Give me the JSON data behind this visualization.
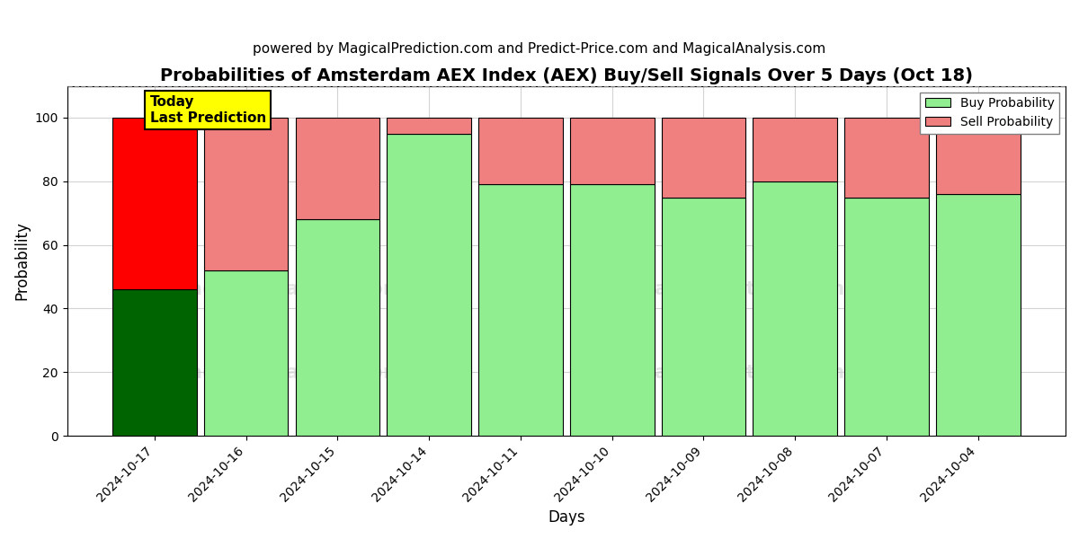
{
  "title": "Probabilities of Amsterdam AEX Index (AEX) Buy/Sell Signals Over 5 Days (Oct 18)",
  "subtitle": "powered by MagicalPrediction.com and Predict-Price.com and MagicalAnalysis.com",
  "xlabel": "Days",
  "ylabel": "Probability",
  "categories": [
    "2024-10-17",
    "2024-10-16",
    "2024-10-15",
    "2024-10-14",
    "2024-10-11",
    "2024-10-10",
    "2024-10-09",
    "2024-10-08",
    "2024-10-07",
    "2024-10-04"
  ],
  "buy_values": [
    46,
    52,
    68,
    95,
    79,
    79,
    75,
    80,
    75,
    76
  ],
  "sell_values": [
    54,
    48,
    32,
    5,
    21,
    21,
    25,
    20,
    25,
    24
  ],
  "today_index": 0,
  "buy_color_today": "#006400",
  "sell_color_today": "#FF0000",
  "buy_color_normal": "#90EE90",
  "sell_color_normal": "#F08080",
  "today_annotation_text": "Today\nLast Prediction",
  "today_annotation_bg": "#FFFF00",
  "legend_buy_label": "Buy Probability",
  "legend_sell_label": "Sell Probability",
  "ylim": [
    0,
    110
  ],
  "yticks": [
    0,
    20,
    40,
    60,
    80,
    100
  ],
  "dashed_line_y": 110,
  "figsize": [
    12,
    6
  ],
  "dpi": 100,
  "title_fontsize": 14,
  "subtitle_fontsize": 11,
  "axis_label_fontsize": 12,
  "tick_fontsize": 10,
  "bar_width": 0.92
}
